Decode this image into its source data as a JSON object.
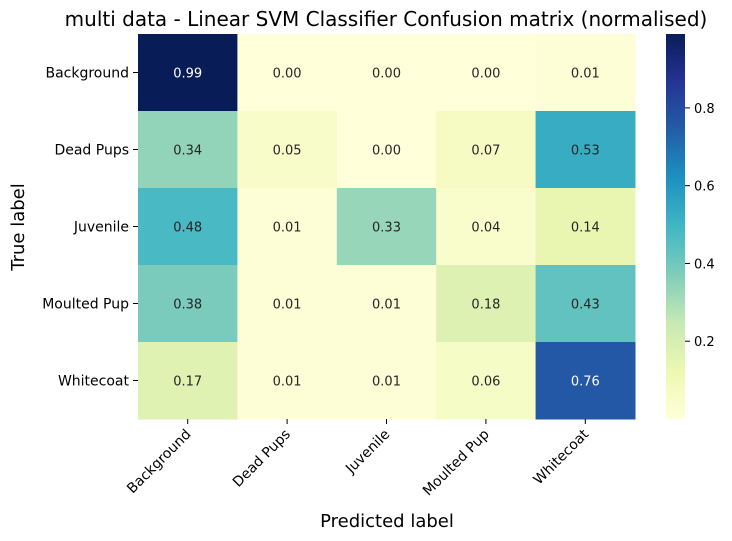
{
  "chart_data": {
    "type": "heatmap",
    "title": "multi data - Linear SVM Classifier Confusion matrix (normalised)",
    "xlabel": "Predicted label",
    "ylabel": "True label",
    "x_categories": [
      "Background",
      "Dead Pups",
      "Juvenile",
      "Moulted Pup",
      "Whitecoat"
    ],
    "y_categories": [
      "Background",
      "Dead Pups",
      "Juvenile",
      "Moulted Pup",
      "Whitecoat"
    ],
    "values": [
      [
        0.99,
        0.0,
        0.0,
        0.0,
        0.01
      ],
      [
        0.34,
        0.05,
        0.0,
        0.07,
        0.53
      ],
      [
        0.48,
        0.01,
        0.33,
        0.04,
        0.14
      ],
      [
        0.38,
        0.01,
        0.01,
        0.18,
        0.43
      ],
      [
        0.17,
        0.01,
        0.01,
        0.06,
        0.76
      ]
    ],
    "value_format": "0.00",
    "colormap": "YlGnBu",
    "colorbar": {
      "range": [
        0.0,
        0.99
      ],
      "ticks": [
        0.2,
        0.4,
        0.6,
        0.8
      ]
    }
  }
}
